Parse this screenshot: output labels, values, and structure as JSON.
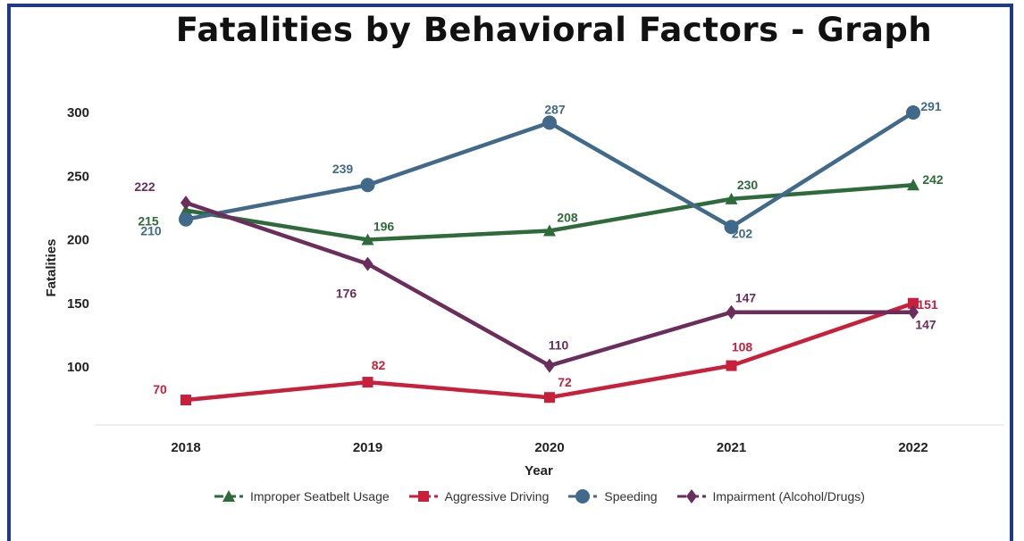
{
  "chart_data": {
    "type": "line",
    "title": "Fatalities by Behavioral Factors - Graph",
    "xlabel": "Year",
    "ylabel": "Fatalities",
    "categories": [
      "2018",
      "2019",
      "2020",
      "2021",
      "2022"
    ],
    "ylim": [
      50,
      300
    ],
    "yticks": [
      100,
      150,
      200,
      250,
      300
    ],
    "grid": false,
    "legend_position": "bottom",
    "series": [
      {
        "name": "Improper Seatbelt Usage",
        "color": "#2e6b3a",
        "marker": "triangle",
        "values": [
          215,
          196,
          208,
          230,
          242
        ],
        "plot_values": [
          223,
          200,
          207,
          232,
          243
        ]
      },
      {
        "name": "Aggressive Driving",
        "color": "#c8203a",
        "marker": "square",
        "values": [
          70,
          82,
          72,
          108,
          151
        ],
        "plot_values": [
          74,
          88,
          76,
          101,
          150
        ]
      },
      {
        "name": "Speeding",
        "color": "#41698a",
        "marker": "circle",
        "values": [
          210,
          239,
          287,
          202,
          291
        ],
        "plot_values": [
          216,
          243,
          292,
          210,
          300
        ]
      },
      {
        "name": "Impairment (Alcohol/Drugs)",
        "color": "#6b2d5c",
        "marker": "diamond",
        "values": [
          222,
          176,
          110,
          147,
          147
        ],
        "plot_values": [
          229,
          181,
          101,
          143,
          143
        ]
      }
    ]
  }
}
